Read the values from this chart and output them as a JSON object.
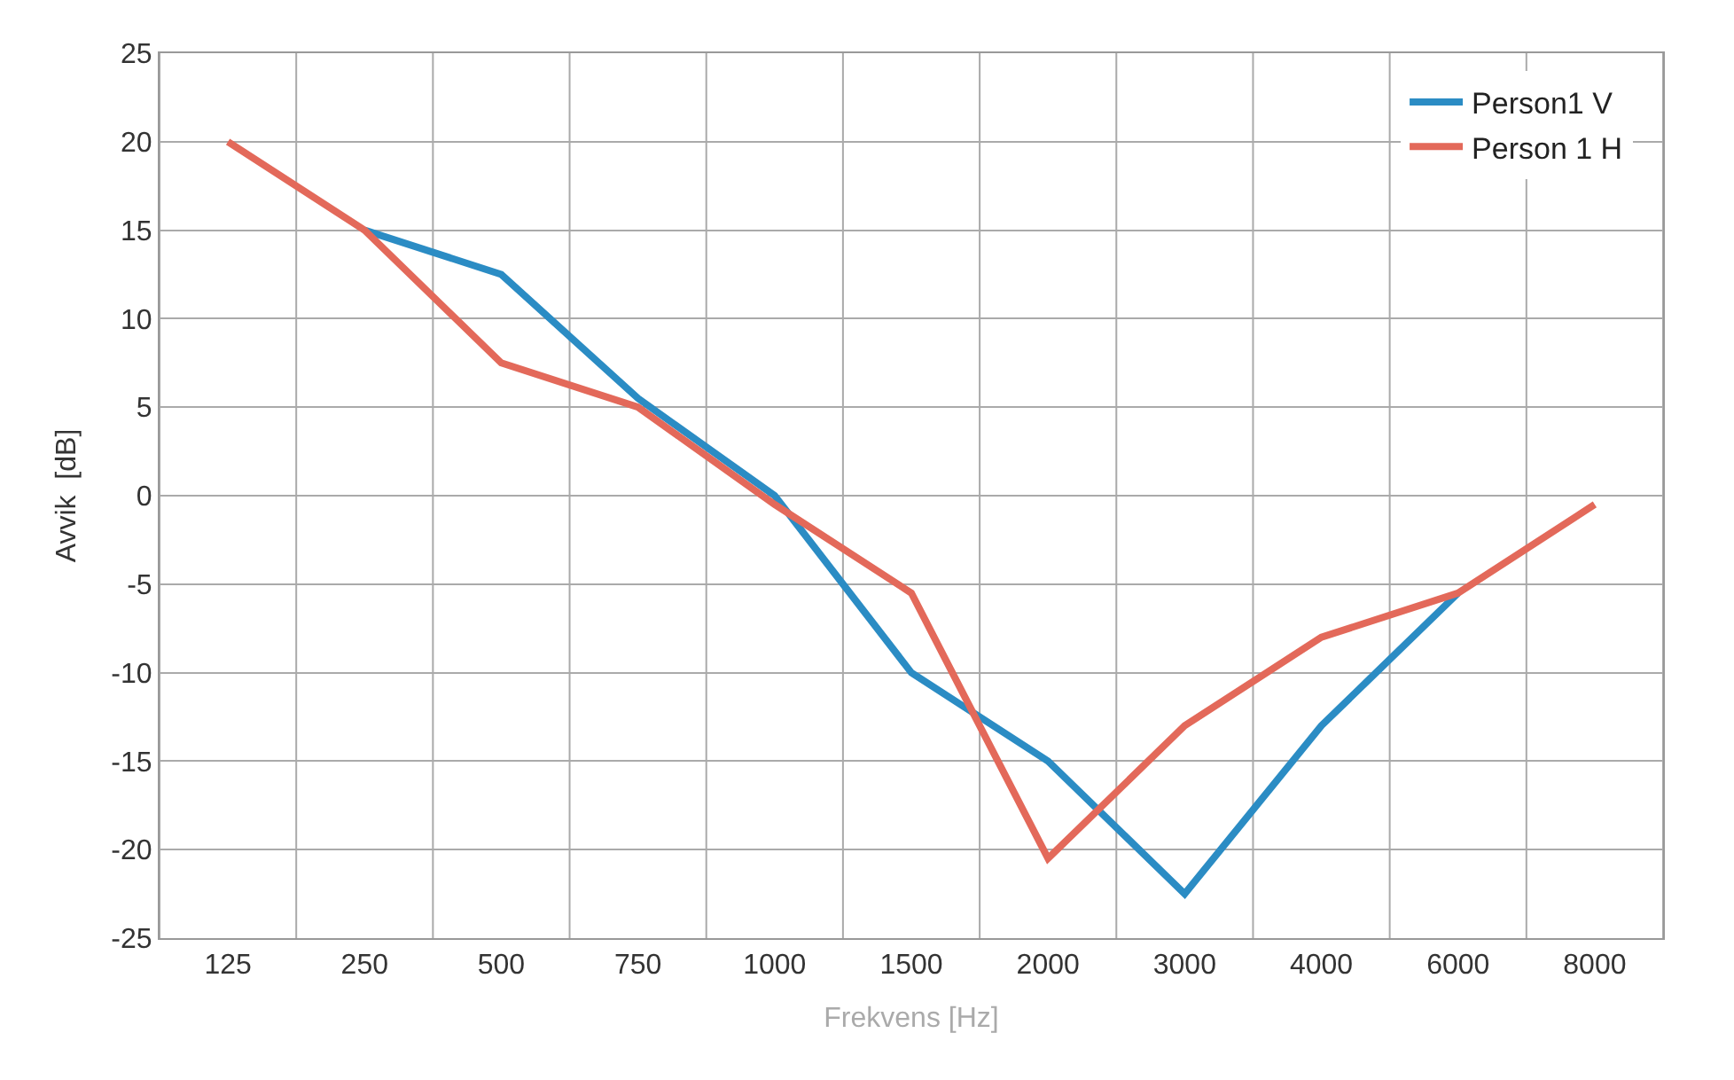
{
  "chart_data": {
    "type": "line",
    "xlabel": "Frekvens [Hz]",
    "ylabel": "Avvik  [dB]",
    "categories": [
      "125",
      "250",
      "500",
      "750",
      "1000",
      "1500",
      "2000",
      "3000",
      "4000",
      "6000",
      "8000"
    ],
    "series": [
      {
        "name": "Person1 V",
        "color": "#2b8cc4",
        "values": [
          null,
          15,
          12.5,
          5.5,
          0,
          -10,
          -15,
          -22.5,
          -13,
          -5.5,
          null
        ]
      },
      {
        "name": "Person 1 H",
        "color": "#e3695a",
        "values": [
          20,
          15,
          7.5,
          5,
          -0.5,
          -5.5,
          -20.5,
          -13,
          -8,
          -5.5,
          -0.5
        ]
      }
    ],
    "ylim": [
      -25,
      25
    ],
    "yticks": [
      -25,
      -20,
      -15,
      -10,
      -5,
      0,
      5,
      10,
      15,
      20,
      25
    ],
    "grid": true,
    "legend": "top right",
    "marker": "none",
    "line_style": "solid"
  }
}
